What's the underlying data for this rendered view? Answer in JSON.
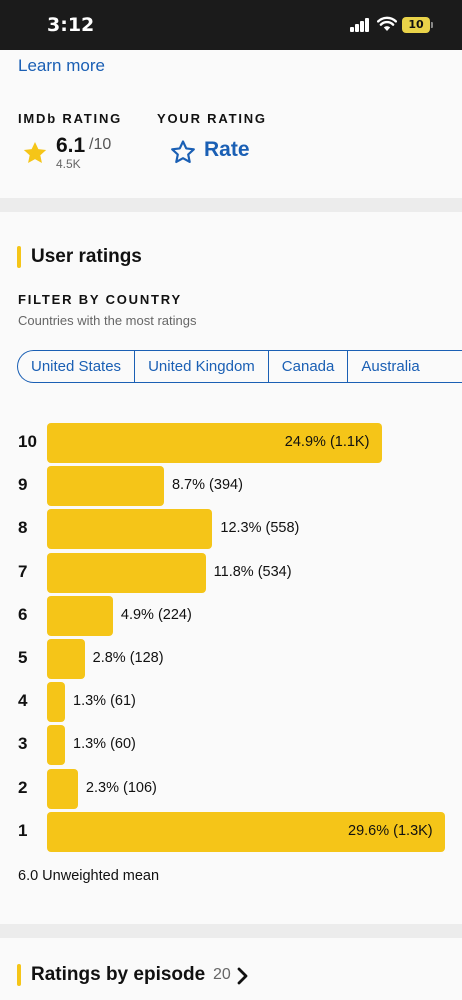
{
  "status_bar": {
    "time": "3:12",
    "battery": "10"
  },
  "top": {
    "learn_more": "Learn more",
    "imdb_rating_label": "IMDb RATING",
    "rating_value": "6.1",
    "rating_max": "/10",
    "rating_count": "4.5K",
    "your_rating_label": "YOUR RATING",
    "rate_label": "Rate"
  },
  "user_ratings": {
    "title": "User ratings",
    "filter_label": "FILTER BY COUNTRY",
    "filter_sub": "Countries with the most ratings",
    "countries": [
      "United States",
      "United Kingdom",
      "Canada",
      "Australia"
    ],
    "mean_text": "6.0 Unweighted mean"
  },
  "chart_data": {
    "type": "bar",
    "orientation": "horizontal",
    "categories": [
      "10",
      "9",
      "8",
      "7",
      "6",
      "5",
      "4",
      "3",
      "2",
      "1"
    ],
    "values": [
      24.9,
      8.7,
      12.3,
      11.8,
      4.9,
      2.8,
      1.3,
      1.3,
      2.3,
      29.6
    ],
    "labels": [
      "24.9% (1.1K)",
      "8.7% (394)",
      "12.3% (558)",
      "11.8% (534)",
      "4.9% (224)",
      "2.8% (128)",
      "1.3% (61)",
      "1.3% (60)",
      "2.3% (106)",
      "29.6% (1.3K)"
    ],
    "bar_color": "#f5c518"
  },
  "episodes": {
    "title": "Ratings by episode",
    "count": "20"
  },
  "colors": {
    "accent": "#f5c518",
    "link": "#1a5fb4"
  }
}
